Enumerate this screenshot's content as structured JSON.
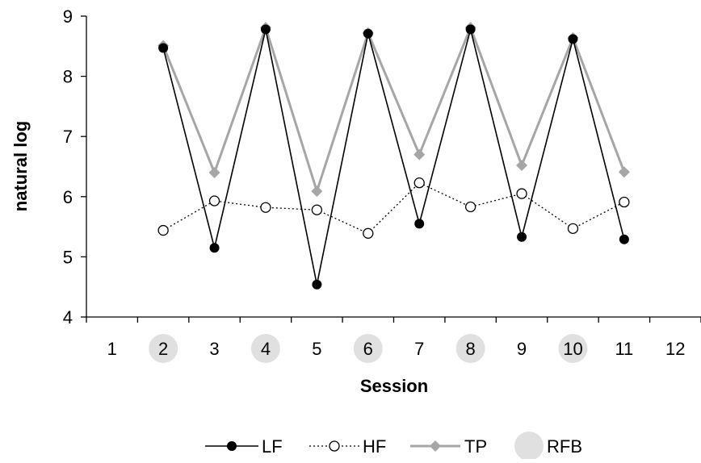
{
  "chart_data": {
    "type": "line",
    "xlabel": "Session",
    "ylabel": "natural log",
    "x_categories": [
      "1",
      "2",
      "3",
      "4",
      "5",
      "6",
      "7",
      "8",
      "9",
      "10",
      "11",
      "12"
    ],
    "ylim": [
      4,
      9
    ],
    "y_ticks": [
      "4",
      "5",
      "6",
      "7",
      "8",
      "9"
    ],
    "highlighted_categories": [
      "2",
      "4",
      "6",
      "8",
      "10"
    ],
    "grid": false,
    "legend_position": "bottom",
    "series": [
      {
        "name": "LF",
        "style": "solid-black-filled-circle",
        "color": "#000000",
        "x": [
          2,
          3,
          4,
          5,
          6,
          7,
          8,
          9,
          10,
          11
        ],
        "values": [
          8.47,
          5.15,
          8.78,
          4.54,
          8.71,
          5.55,
          8.78,
          5.33,
          8.62,
          5.29
        ]
      },
      {
        "name": "HF",
        "style": "dotted-black-open-circle",
        "color": "#000000",
        "x": [
          2,
          3,
          4,
          5,
          6,
          7,
          8,
          9,
          10,
          11
        ],
        "values": [
          5.44,
          5.93,
          5.82,
          5.78,
          5.39,
          6.23,
          5.83,
          6.05,
          5.47,
          5.91
        ]
      },
      {
        "name": "TP",
        "style": "solid-gray-diamond",
        "color": "#a6a6a6",
        "x": [
          2,
          3,
          4,
          5,
          6,
          7,
          8,
          9,
          10,
          11
        ],
        "values": [
          8.51,
          6.4,
          8.81,
          6.09,
          8.72,
          6.7,
          8.81,
          6.52,
          8.64,
          6.41
        ]
      }
    ],
    "legend": [
      {
        "label": "LF",
        "icon": "line-filled-circle-icon"
      },
      {
        "label": "HF",
        "icon": "dotted-open-circle-icon"
      },
      {
        "label": "TP",
        "icon": "gray-line-diamond-icon"
      },
      {
        "label": "RFB",
        "icon": "gray-circle-icon"
      }
    ],
    "colors": {
      "rfb_marker": "#e0e0e0",
      "tp_line": "#a6a6a6",
      "axis": "#000000"
    }
  }
}
